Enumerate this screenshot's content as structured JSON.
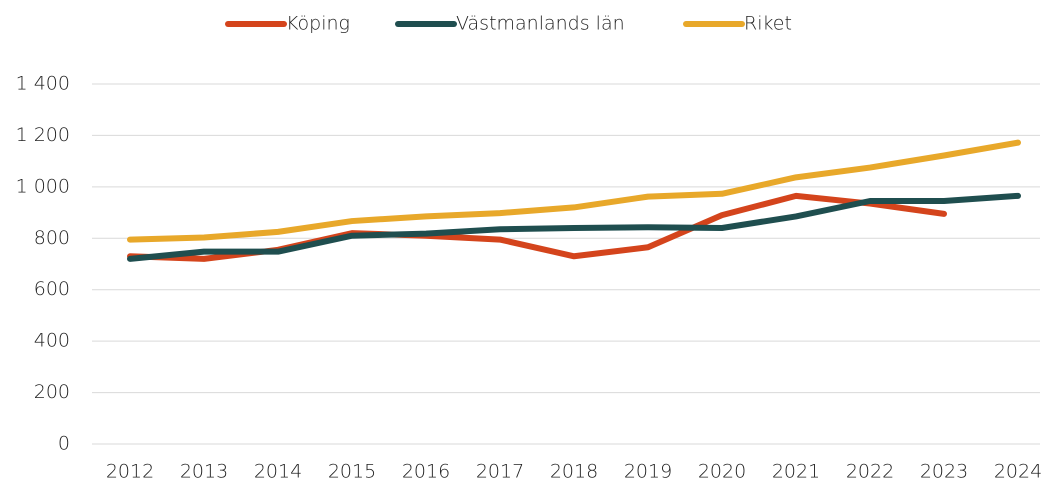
{
  "chart_data": {
    "type": "line",
    "categories": [
      "2012",
      "2013",
      "2014",
      "2015",
      "2016",
      "2017",
      "2018",
      "2019",
      "2020",
      "2021",
      "2022",
      "2023",
      "2024"
    ],
    "series": [
      {
        "name": "Köping",
        "color": "#d4441c",
        "values": [
          730,
          720,
          755,
          820,
          810,
          795,
          730,
          765,
          890,
          965,
          935,
          895,
          null
        ]
      },
      {
        "name": "Västmanlands län",
        "color": "#1f4e4f",
        "values": [
          720,
          748,
          748,
          810,
          818,
          835,
          840,
          843,
          840,
          885,
          945,
          945,
          965
        ]
      },
      {
        "name": "Riket",
        "color": "#e8a82a",
        "values": [
          795,
          803,
          825,
          867,
          885,
          898,
          920,
          962,
          973,
          1037,
          1075,
          1122,
          1172
        ]
      }
    ],
    "ylim": [
      0,
      1400
    ],
    "yticks": [
      0,
      200,
      400,
      600,
      800,
      {
        "value": 1000,
        "label": "1 000"
      },
      {
        "value": 1200,
        "label": "1 200"
      },
      {
        "value": 1400,
        "label": "1 400"
      }
    ],
    "grid": true,
    "legend": "top"
  }
}
